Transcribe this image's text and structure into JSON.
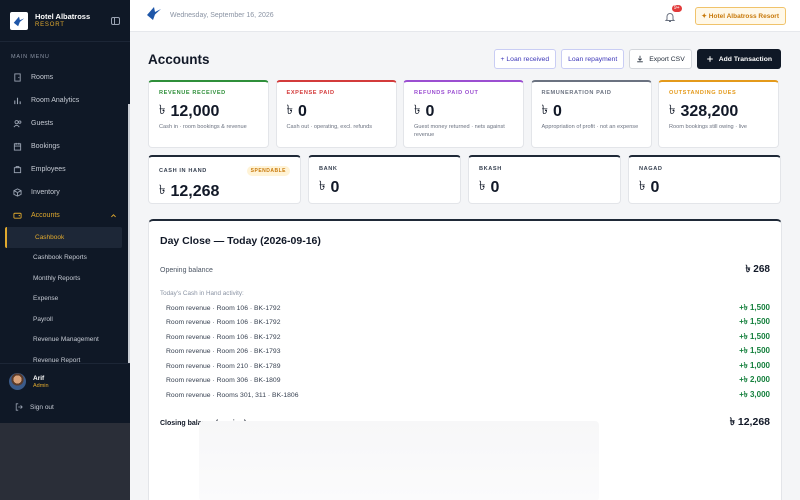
{
  "brand": {
    "name": "Hotel Albatross",
    "sub": "RESORT"
  },
  "sidebar": {
    "menu_label": "MAIN MENU",
    "items": [
      {
        "label": "Rooms",
        "icon": "door-icon"
      },
      {
        "label": "Room Analytics",
        "icon": "chart-icon"
      },
      {
        "label": "Guests",
        "icon": "users-icon"
      },
      {
        "label": "Bookings",
        "icon": "calendar-icon"
      },
      {
        "label": "Employees",
        "icon": "briefcase-icon"
      },
      {
        "label": "Inventory",
        "icon": "box-icon"
      },
      {
        "label": "Accounts",
        "icon": "wallet-icon"
      }
    ],
    "sub_items": [
      "Cashbook",
      "Cashbook Reports",
      "Monthly Reports",
      "Expense",
      "Payroll",
      "Revenue Management",
      "Revenue Report"
    ]
  },
  "user": {
    "name": "Arif",
    "role": "Admin",
    "signout": "Sign out"
  },
  "topbar": {
    "date": "Wednesday, September 16, 2026",
    "notif_count": "9+",
    "hotel": "Hotel Albatross Resort"
  },
  "page": {
    "title": "Accounts",
    "actions": {
      "loan_received": "+ Loan received",
      "loan_repayment": "Loan repayment",
      "export": "Export CSV",
      "add": "Add Transaction"
    }
  },
  "currency": "৳",
  "stats": [
    {
      "label": "REVENUE RECEIVED",
      "value": "12,000",
      "desc": "Cash in · room bookings & revenue",
      "color": "#2f8f3a"
    },
    {
      "label": "EXPENSE PAID",
      "value": "0",
      "desc": "Cash out · operating, excl. refunds",
      "color": "#d33b3b"
    },
    {
      "label": "REFUNDS PAID OUT",
      "value": "0",
      "desc": "Guest money returned · nets against revenue",
      "color": "#9b4fd1"
    },
    {
      "label": "REMUNERATION PAID",
      "value": "0",
      "desc": "Appropriation of profit · not an expense",
      "color": "#6b7280"
    },
    {
      "label": "OUTSTANDING DUES",
      "value": "328,200",
      "desc": "Room bookings still owing · live",
      "color": "#e49a1b"
    }
  ],
  "cash": [
    {
      "label": "CASH IN HAND",
      "value": "12,268",
      "badge": "SPENDABLE"
    },
    {
      "label": "BANK",
      "value": "0"
    },
    {
      "label": "BKASH",
      "value": "0"
    },
    {
      "label": "NAGAD",
      "value": "0"
    }
  ],
  "day_close": {
    "title": "Day Close — Today (2026-09-16)",
    "opening_label": "Opening balance",
    "opening_value": "৳ 268",
    "activity_label": "Today's Cash in Hand activity:",
    "rows": [
      {
        "desc": "Room revenue · Room 106 · BK-1792",
        "amount": "+৳ 1,500"
      },
      {
        "desc": "Room revenue · Room 106 · BK-1792",
        "amount": "+৳ 1,500"
      },
      {
        "desc": "Room revenue · Room 106 · BK-1792",
        "amount": "+৳ 1,500"
      },
      {
        "desc": "Room revenue · Room 206 · BK-1793",
        "amount": "+৳ 1,500"
      },
      {
        "desc": "Room revenue · Room 210 · BK-1789",
        "amount": "+৳ 1,000"
      },
      {
        "desc": "Room revenue · Room 306 · BK-1809",
        "amount": "+৳ 2,000"
      },
      {
        "desc": "Room revenue · Rooms 301, 311 · BK-1806",
        "amount": "+৳ 3,000"
      }
    ],
    "closing_label": "Closing balance (preview)",
    "closing_value": "৳ 12,268"
  }
}
